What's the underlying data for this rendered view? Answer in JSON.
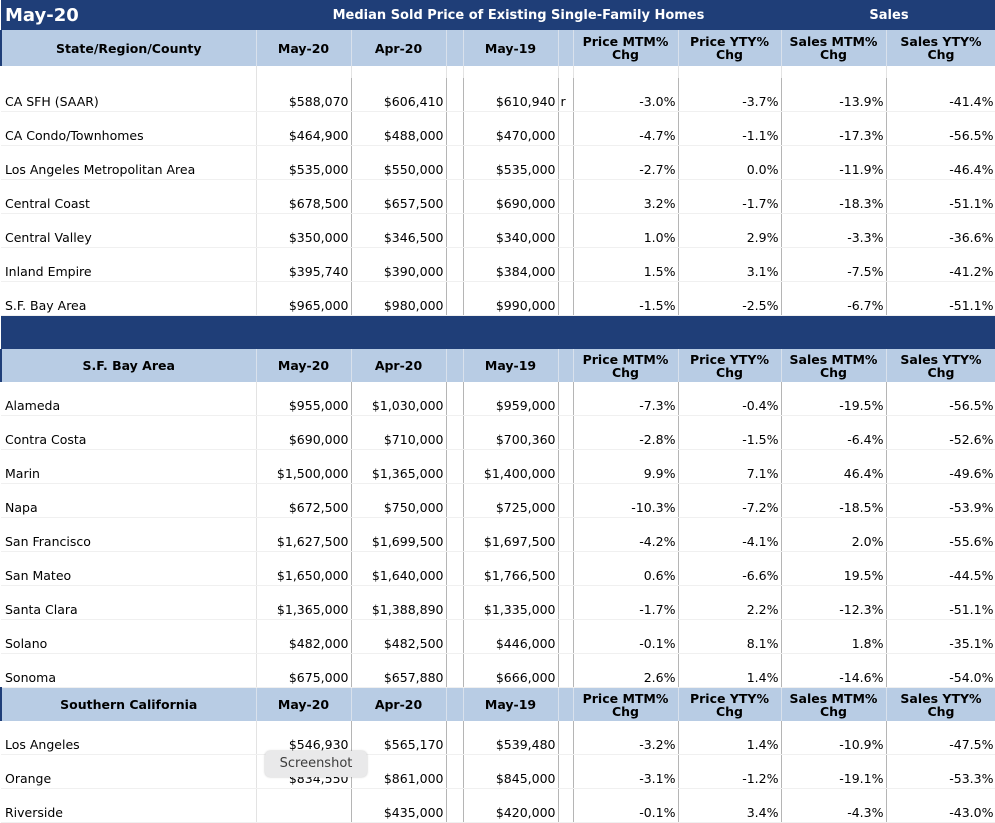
{
  "header": {
    "period": "May-20",
    "title": "Median Sold Price of Existing Single-Family Homes",
    "sales": "Sales"
  },
  "columns": {
    "c_may20": "May-20",
    "c_apr20": "Apr-20",
    "c_may19": "May-19",
    "c_price_mtm": [
      "Price MTM%",
      "Chg"
    ],
    "c_price_yty": [
      "Price YTY%",
      "Chg"
    ],
    "c_sales_mtm": [
      "Sales MTM%",
      "Chg"
    ],
    "c_sales_yty": [
      "Sales YTY%",
      "Chg"
    ]
  },
  "sections": [
    {
      "label": "State/Region/County",
      "rows": [
        {
          "name": "CA SFH (SAAR)",
          "may20": "$588,070",
          "apr20": "$606,410",
          "may19": "$610,940",
          "flag": "r",
          "price_mtm": "-3.0%",
          "price_yty": "-3.7%",
          "sales_mtm": "-13.9%",
          "sales_yty": "-41.4%"
        },
        {
          "name": "CA Condo/Townhomes",
          "may20": "$464,900",
          "apr20": "$488,000",
          "may19": "$470,000",
          "flag": "",
          "price_mtm": "-4.7%",
          "price_yty": "-1.1%",
          "sales_mtm": "-17.3%",
          "sales_yty": "-56.5%"
        },
        {
          "name": "Los Angeles Metropolitan Area",
          "may20": "$535,000",
          "apr20": "$550,000",
          "may19": "$535,000",
          "flag": "",
          "price_mtm": "-2.7%",
          "price_yty": "0.0%",
          "sales_mtm": "-11.9%",
          "sales_yty": "-46.4%"
        },
        {
          "name": "Central Coast",
          "may20": "$678,500",
          "apr20": "$657,500",
          "may19": "$690,000",
          "flag": "",
          "price_mtm": "3.2%",
          "price_yty": "-1.7%",
          "sales_mtm": "-18.3%",
          "sales_yty": "-51.1%"
        },
        {
          "name": "Central Valley",
          "may20": "$350,000",
          "apr20": "$346,500",
          "may19": "$340,000",
          "flag": "",
          "price_mtm": "1.0%",
          "price_yty": "2.9%",
          "sales_mtm": "-3.3%",
          "sales_yty": "-36.6%"
        },
        {
          "name": "Inland Empire",
          "may20": "$395,740",
          "apr20": "$390,000",
          "may19": "$384,000",
          "flag": "",
          "price_mtm": "1.5%",
          "price_yty": "3.1%",
          "sales_mtm": "-7.5%",
          "sales_yty": "-41.2%"
        },
        {
          "name": "S.F. Bay Area",
          "may20": "$965,000",
          "apr20": "$980,000",
          "may19": "$990,000",
          "flag": "",
          "price_mtm": "-1.5%",
          "price_yty": "-2.5%",
          "sales_mtm": "-6.7%",
          "sales_yty": "-51.1%"
        }
      ]
    },
    {
      "label": "S.F. Bay Area",
      "rows": [
        {
          "name": "Alameda",
          "may20": "$955,000",
          "apr20": "$1,030,000",
          "may19": "$959,000",
          "flag": "",
          "price_mtm": "-7.3%",
          "price_yty": "-0.4%",
          "sales_mtm": "-19.5%",
          "sales_yty": "-56.5%"
        },
        {
          "name": "Contra Costa",
          "may20": "$690,000",
          "apr20": "$710,000",
          "may19": "$700,360",
          "flag": "",
          "price_mtm": "-2.8%",
          "price_yty": "-1.5%",
          "sales_mtm": "-6.4%",
          "sales_yty": "-52.6%"
        },
        {
          "name": "Marin",
          "may20": "$1,500,000",
          "apr20": "$1,365,000",
          "may19": "$1,400,000",
          "flag": "",
          "price_mtm": "9.9%",
          "price_yty": "7.1%",
          "sales_mtm": "46.4%",
          "sales_yty": "-49.6%"
        },
        {
          "name": "Napa",
          "may20": "$672,500",
          "apr20": "$750,000",
          "may19": "$725,000",
          "flag": "",
          "price_mtm": "-10.3%",
          "price_yty": "-7.2%",
          "sales_mtm": "-18.5%",
          "sales_yty": "-53.9%"
        },
        {
          "name": "San Francisco",
          "may20": "$1,627,500",
          "apr20": "$1,699,500",
          "may19": "$1,697,500",
          "flag": "",
          "price_mtm": "-4.2%",
          "price_yty": "-4.1%",
          "sales_mtm": "2.0%",
          "sales_yty": "-55.6%"
        },
        {
          "name": "San Mateo",
          "may20": "$1,650,000",
          "apr20": "$1,640,000",
          "may19": "$1,766,500",
          "flag": "",
          "price_mtm": "0.6%",
          "price_yty": "-6.6%",
          "sales_mtm": "19.5%",
          "sales_yty": "-44.5%"
        },
        {
          "name": "Santa Clara",
          "may20": "$1,365,000",
          "apr20": "$1,388,890",
          "may19": "$1,335,000",
          "flag": "",
          "price_mtm": "-1.7%",
          "price_yty": "2.2%",
          "sales_mtm": "-12.3%",
          "sales_yty": "-51.1%"
        },
        {
          "name": "Solano",
          "may20": "$482,000",
          "apr20": "$482,500",
          "may19": "$446,000",
          "flag": "",
          "price_mtm": "-0.1%",
          "price_yty": "8.1%",
          "sales_mtm": "1.8%",
          "sales_yty": "-35.1%"
        },
        {
          "name": "Sonoma",
          "may20": "$675,000",
          "apr20": "$657,880",
          "may19": "$666,000",
          "flag": "",
          "price_mtm": "2.6%",
          "price_yty": "1.4%",
          "sales_mtm": "-14.6%",
          "sales_yty": "-54.0%"
        }
      ]
    },
    {
      "label": "Southern California",
      "rows": [
        {
          "name": "Los Angeles",
          "may20": "$546,930",
          "apr20": "$565,170",
          "may19": "$539,480",
          "flag": "",
          "price_mtm": "-3.2%",
          "price_yty": "1.4%",
          "sales_mtm": "-10.9%",
          "sales_yty": "-47.5%"
        },
        {
          "name": "Orange",
          "may20": "$834,550",
          "apr20": "$861,000",
          "may19": "$845,000",
          "flag": "",
          "price_mtm": "-3.1%",
          "price_yty": "-1.2%",
          "sales_mtm": "-19.1%",
          "sales_yty": "-53.3%"
        },
        {
          "name": "Riverside",
          "may20": "",
          "apr20": "$435,000",
          "may19": "$420,000",
          "flag": "",
          "price_mtm": "-0.1%",
          "price_yty": "3.4%",
          "sales_mtm": "-4.3%",
          "sales_yty": "-43.0%"
        }
      ]
    }
  ],
  "toast": {
    "label": "Screenshot"
  }
}
